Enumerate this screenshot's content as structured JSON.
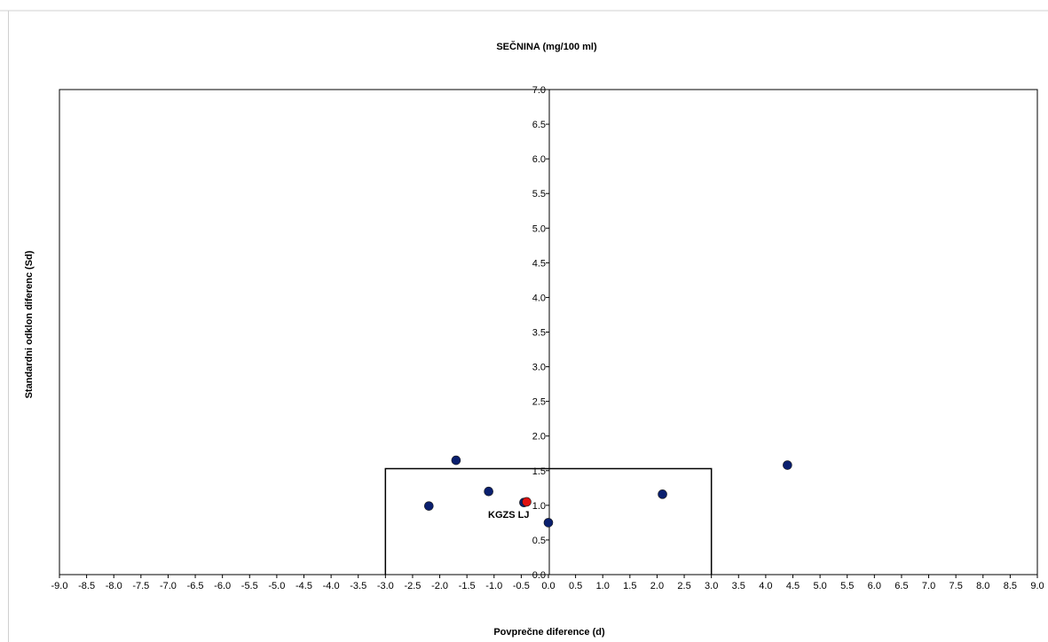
{
  "chart_data": {
    "type": "scatter",
    "title": "SEČNINA  (mg/100  ml)",
    "xlabel": "Povprečne  diference  (d)",
    "ylabel": "Standardni  odklon  diferenc  (Sd)",
    "xlim": [
      -9.0,
      9.0
    ],
    "ylim": [
      0.0,
      7.0
    ],
    "x_tick_labels": [
      "-9.0",
      "-8.5",
      "-8.0",
      "-7.5",
      "-7.0",
      "-6.5",
      "-6.0",
      "-5.5",
      "-5.0",
      "-4.5",
      "-4.0",
      "-3.5",
      "-3.0",
      "-2.5",
      "-2.0",
      "-1.5",
      "-1.0",
      "-0.5",
      "0.0",
      "0.5",
      "1.0",
      "1.5",
      "2.0",
      "2.5",
      "3.0",
      "3.5",
      "4.0",
      "4.5",
      "5.0",
      "5.5",
      "6.0",
      "6.5",
      "7.0",
      "7.5",
      "8.0",
      "8.5",
      "9.0"
    ],
    "y_tick_labels": [
      "0.0",
      "0.5",
      "1.0",
      "1.5",
      "2.0",
      "2.5",
      "3.0",
      "3.5",
      "4.0",
      "4.5",
      "5.0",
      "5.5",
      "6.0",
      "6.5",
      "7.0"
    ],
    "series": [
      {
        "color": "#0a1f6e",
        "points": [
          {
            "x": -2.2,
            "y": 0.99
          },
          {
            "x": -1.7,
            "y": 1.65
          },
          {
            "x": -1.1,
            "y": 1.2
          },
          {
            "x": -0.45,
            "y": 1.04
          },
          {
            "x": 0.0,
            "y": 0.75
          },
          {
            "x": 2.1,
            "y": 1.16
          },
          {
            "x": 4.4,
            "y": 1.58
          }
        ]
      },
      {
        "color": "#e01010",
        "points": [
          {
            "x": -0.4,
            "y": 1.05
          }
        ]
      }
    ],
    "annotations": [
      {
        "text": "KGZS  LJ",
        "x": -0.4,
        "y": 1.05
      }
    ],
    "limit_box": {
      "x_min": -3.0,
      "x_max": 3.0,
      "y_max": 1.53
    },
    "grid": false,
    "legend": "none"
  }
}
